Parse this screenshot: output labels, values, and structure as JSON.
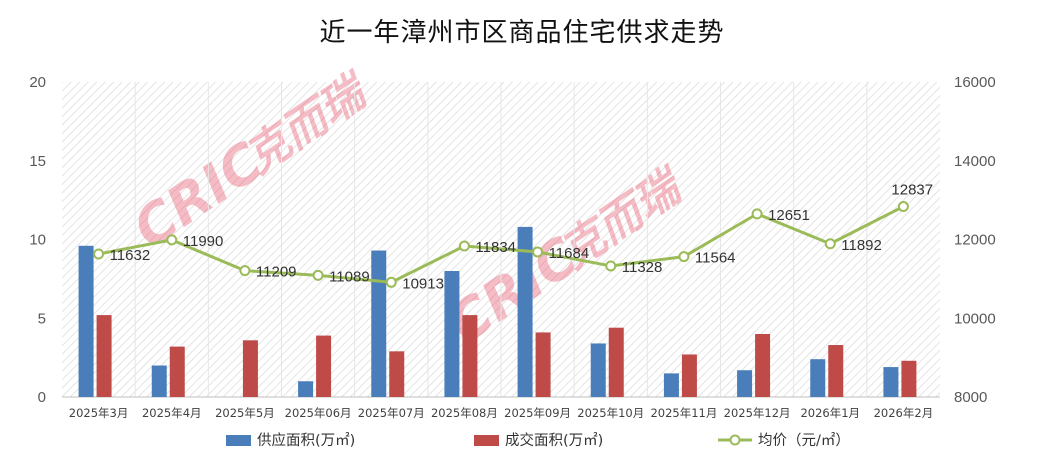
{
  "chart_data": {
    "type": "bar",
    "title": "近一年漳州市区商品住宅供求走势",
    "categories": [
      "2025年3月",
      "2025年4月",
      "2025年5月",
      "2025年06月",
      "2025年07月",
      "2025年08月",
      "2025年09月",
      "2025年10月",
      "2025年11月",
      "2025年12月",
      "2026年1月",
      "2026年2月"
    ],
    "series": [
      {
        "name": "供应面积(万㎡)",
        "type": "bar",
        "axis": "left",
        "color": "#4a7ebb",
        "values": [
          9.6,
          2.0,
          0,
          1.0,
          9.3,
          8.0,
          10.8,
          3.4,
          1.5,
          1.7,
          2.4,
          1.9
        ]
      },
      {
        "name": "成交面积(万㎡)",
        "type": "bar",
        "axis": "left",
        "color": "#be4b48",
        "values": [
          5.2,
          3.2,
          3.6,
          3.9,
          2.9,
          5.2,
          4.1,
          4.4,
          2.7,
          4.0,
          3.3,
          2.3
        ]
      },
      {
        "name": "均价（元/㎡）",
        "type": "line",
        "axis": "right",
        "color": "#9bbb59",
        "values": [
          11632,
          11990,
          11209,
          11089,
          10913,
          11834,
          11684,
          11328,
          11564,
          12651,
          11892,
          12837
        ]
      }
    ],
    "y_left": {
      "min": 0,
      "max": 20,
      "ticks": [
        0,
        5,
        10,
        15,
        20
      ]
    },
    "y_right": {
      "min": 8000,
      "max": 16000,
      "ticks": [
        8000,
        10000,
        12000,
        14000,
        16000
      ]
    },
    "grid": "vertical hatched plot area",
    "legend": "bottom"
  },
  "watermark": {
    "latin": "CRIC",
    "cjk": "克而瑞",
    "color": "#e8516a"
  }
}
